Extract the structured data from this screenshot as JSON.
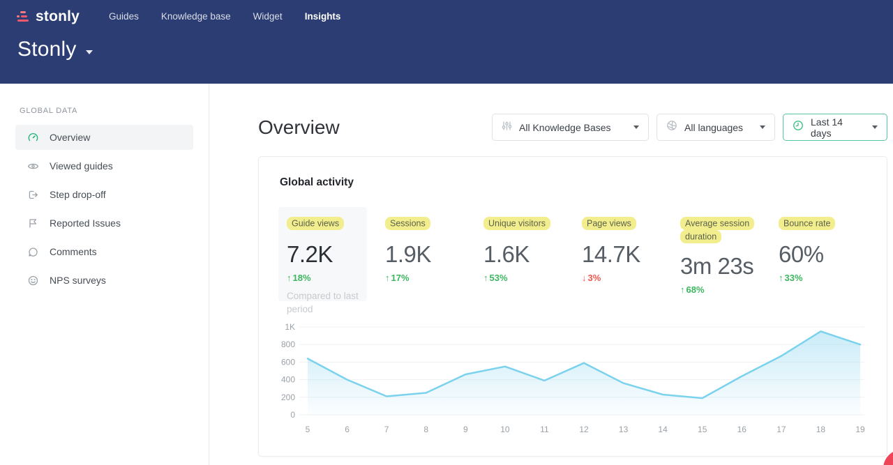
{
  "topnav": {
    "logo_text": "stonly",
    "items": [
      {
        "label": "Guides"
      },
      {
        "label": "Knowledge base"
      },
      {
        "label": "Widget"
      },
      {
        "label": "Insights"
      }
    ]
  },
  "workspace": {
    "name": "Stonly"
  },
  "sidebar": {
    "section_label": "GLOBAL DATA",
    "items": [
      {
        "label": "Overview"
      },
      {
        "label": "Viewed guides"
      },
      {
        "label": "Step drop-off"
      },
      {
        "label": "Reported Issues"
      },
      {
        "label": "Comments"
      },
      {
        "label": "NPS surveys"
      }
    ]
  },
  "main": {
    "page_title": "Overview",
    "filters": [
      {
        "label": "All Knowledge Bases"
      },
      {
        "label": "All languages"
      },
      {
        "label": "Last 14 days"
      }
    ],
    "card_title": "Global activity",
    "metrics": [
      {
        "label": "Guide views",
        "value": "7.2K",
        "arrow": "↑",
        "change": "18%",
        "direction": "up",
        "note": "Compared to last period"
      },
      {
        "label": "Sessions",
        "value": "1.9K",
        "arrow": "↑",
        "change": "17%",
        "direction": "up"
      },
      {
        "label": "Unique visitors",
        "value": "1.6K",
        "arrow": "↑",
        "change": "53%",
        "direction": "up"
      },
      {
        "label": "Page views",
        "value": "14.7K",
        "arrow": "↓",
        "change": "3%",
        "direction": "down"
      },
      {
        "label": "Average session duration",
        "value": "3m 23s",
        "arrow": "↑",
        "change": "68%",
        "direction": "up"
      },
      {
        "label": "Bounce rate",
        "value": "60%",
        "arrow": "↑",
        "change": "33%",
        "direction": "up"
      }
    ]
  },
  "chart_data": {
    "type": "area",
    "title": "Global activity",
    "x": [
      5,
      6,
      7,
      8,
      9,
      10,
      11,
      12,
      13,
      14,
      15,
      16,
      17,
      18,
      19
    ],
    "series": [
      {
        "name": "Guide views",
        "values": [
          640,
          400,
          210,
          250,
          460,
          550,
          390,
          590,
          360,
          230,
          190,
          440,
          670,
          950,
          800
        ]
      }
    ],
    "xlabel": "",
    "ylabel": "",
    "ylim": [
      0,
      1000
    ],
    "yticks": [
      "0",
      "200",
      "400",
      "600",
      "800",
      "1K"
    ],
    "grid": true,
    "legend": false,
    "line_color": "#7bd2ed",
    "fill_color": "#9fdcf2"
  },
  "colors": {
    "header_bg": "#2b3d73",
    "logo_accent": "#f0586b",
    "highlight_yellow": "#f2ee8d",
    "positive_green": "#3cb65f",
    "negative_red": "#f2554c",
    "accent_green_border": "#57c69b"
  }
}
